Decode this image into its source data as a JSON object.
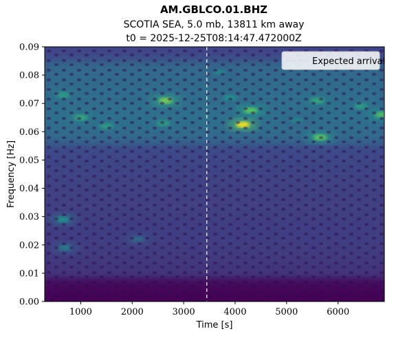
{
  "figure": {
    "title": "AM.GBLCO.01.BHZ",
    "subtitle_event": "SCOTIA SEA, 5.0 mb, 13811 km away",
    "subtitle_time": "t0 = 2025-12-25T08:14:47.472000Z"
  },
  "chart_data": {
    "type": "heatmap",
    "title": "AM.GBLCO.01.BHZ",
    "xlabel": "Time [s]",
    "ylabel": "Frequency [Hz]",
    "xlim": [
      300,
      6900
    ],
    "ylim": [
      0.0,
      0.09
    ],
    "x_ticks": [
      1000,
      2000,
      3000,
      4000,
      5000,
      6000
    ],
    "x_tick_labels": [
      "1000",
      "2000",
      "3000",
      "4000",
      "5000",
      "6000"
    ],
    "y_ticks": [
      0.0,
      0.01,
      0.02,
      0.03,
      0.04,
      0.05,
      0.06,
      0.07,
      0.08,
      0.09
    ],
    "y_tick_labels": [
      "0.00",
      "0.01",
      "0.02",
      "0.03",
      "0.04",
      "0.05",
      "0.06",
      "0.07",
      "0.08",
      "0.09"
    ],
    "colormap": "viridis",
    "grid": false,
    "legend": {
      "placement": "top-right",
      "entries": [
        "Expected arrival"
      ]
    },
    "expected_arrival_time": 3450,
    "energy_bands": [
      {
        "f_low": 0.055,
        "f_high": 0.085,
        "relative_energy": "high"
      },
      {
        "f_low": 0.008,
        "f_high": 0.055,
        "relative_energy": "low"
      },
      {
        "f_low": 0.0,
        "f_high": 0.008,
        "relative_energy": "very low"
      }
    ],
    "hotspots": [
      {
        "time": 4150,
        "freq": 0.0625,
        "intensity": 1.0
      },
      {
        "time": 4300,
        "freq": 0.0675,
        "intensity": 0.75
      },
      {
        "time": 2650,
        "freq": 0.071,
        "intensity": 0.8
      },
      {
        "time": 5650,
        "freq": 0.058,
        "intensity": 0.75
      },
      {
        "time": 6850,
        "freq": 0.066,
        "intensity": 0.7
      },
      {
        "time": 1000,
        "freq": 0.065,
        "intensity": 0.6
      },
      {
        "time": 1500,
        "freq": 0.062,
        "intensity": 0.55
      },
      {
        "time": 650,
        "freq": 0.073,
        "intensity": 0.55
      },
      {
        "time": 2600,
        "freq": 0.063,
        "intensity": 0.55
      },
      {
        "time": 5600,
        "freq": 0.071,
        "intensity": 0.6
      },
      {
        "time": 6450,
        "freq": 0.069,
        "intensity": 0.55
      },
      {
        "time": 3900,
        "freq": 0.072,
        "intensity": 0.5
      },
      {
        "time": 650,
        "freq": 0.029,
        "intensity": 0.5
      },
      {
        "time": 700,
        "freq": 0.019,
        "intensity": 0.4
      },
      {
        "time": 2100,
        "freq": 0.022,
        "intensity": 0.35
      },
      {
        "time": 3700,
        "freq": 0.081,
        "intensity": 0.45
      },
      {
        "time": 5200,
        "freq": 0.064,
        "intensity": 0.45
      }
    ]
  },
  "colors": {
    "cmap_low": "#440154",
    "cmap_mid": "#21918c",
    "cmap_high": "#fde725",
    "arrival_line": "#ffffff",
    "legend_bg": "#ffffff"
  }
}
